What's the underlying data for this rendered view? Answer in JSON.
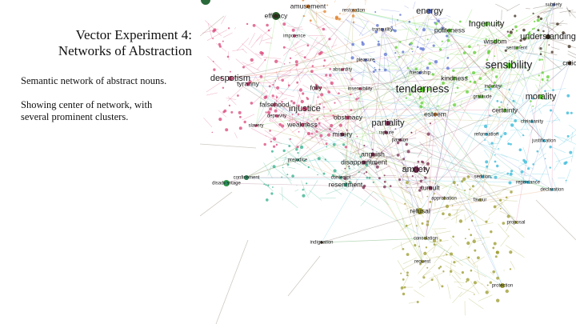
{
  "slide": {
    "title_line1": "Vector Experiment 4:",
    "title_line2": "Networks of Abstraction",
    "description": "Semantic network of abstract nouns.",
    "note": "Showing center of network, with several prominent clusters."
  },
  "network": {
    "cluster_colors": {
      "red": "#d9467a",
      "green": "#5ccf2e",
      "blue": "#5a6fd0",
      "teal": "#2fae8a",
      "maroon": "#7a2a4e",
      "olive": "#9a9a2a",
      "cyan": "#2fb7d8",
      "orange": "#e0832e",
      "dark": "#3a2a1a"
    },
    "nodes": [
      {
        "label": "amusement",
        "cluster": "orange",
        "weight": 2
      },
      {
        "label": "restoration",
        "cluster": "orange",
        "weight": 1
      },
      {
        "label": "energy",
        "cluster": "blue",
        "weight": 3
      },
      {
        "label": "subtlety",
        "cluster": "blue",
        "weight": 1
      },
      {
        "label": "efficacy",
        "cluster": "dark",
        "weight": 2
      },
      {
        "label": "Ingenuity",
        "cluster": "green",
        "weight": 3
      },
      {
        "label": "understanding",
        "cluster": "dark",
        "weight": 3
      },
      {
        "label": "politeness",
        "cluster": "green",
        "weight": 2
      },
      {
        "label": "tranquility",
        "cluster": "blue",
        "weight": 1
      },
      {
        "label": "impotence",
        "cluster": "red",
        "weight": 1
      },
      {
        "label": "wisdom",
        "cluster": "green",
        "weight": 2
      },
      {
        "label": "sentiment",
        "cluster": "green",
        "weight": 1
      },
      {
        "label": "pleasure",
        "cluster": "blue",
        "weight": 1
      },
      {
        "label": "sensibility",
        "cluster": "green",
        "weight": 4
      },
      {
        "label": "critic",
        "cluster": "dark",
        "weight": 2
      },
      {
        "label": "despotism",
        "cluster": "red",
        "weight": 3
      },
      {
        "label": "tyranny",
        "cluster": "red",
        "weight": 2
      },
      {
        "label": "absurdity",
        "cluster": "red",
        "weight": 1
      },
      {
        "label": "friendship",
        "cluster": "blue",
        "weight": 1
      },
      {
        "label": "kindness",
        "cluster": "green",
        "weight": 2
      },
      {
        "label": "tenderness",
        "cluster": "green",
        "weight": 4
      },
      {
        "label": "morality",
        "cluster": "green",
        "weight": 3
      },
      {
        "label": "industry",
        "cluster": "green",
        "weight": 1
      },
      {
        "label": "gratitude",
        "cluster": "green",
        "weight": 1
      },
      {
        "label": "folly",
        "cluster": "red",
        "weight": 2
      },
      {
        "label": "insensibility",
        "cluster": "red",
        "weight": 1
      },
      {
        "label": "falsehood",
        "cluster": "red",
        "weight": 2
      },
      {
        "label": "injustice",
        "cluster": "red",
        "weight": 3
      },
      {
        "label": "obstinacy",
        "cluster": "red",
        "weight": 2
      },
      {
        "label": "esteem",
        "cluster": "orange",
        "weight": 2
      },
      {
        "label": "certainty",
        "cluster": "green",
        "weight": 2
      },
      {
        "label": "christianity",
        "cluster": "cyan",
        "weight": 1
      },
      {
        "label": "partiality",
        "cluster": "maroon",
        "weight": 3
      },
      {
        "label": "depravity",
        "cluster": "red",
        "weight": 1
      },
      {
        "label": "slavery",
        "cluster": "red",
        "weight": 1
      },
      {
        "label": "weakness",
        "cluster": "red",
        "weight": 2
      },
      {
        "label": "misery",
        "cluster": "maroon",
        "weight": 2
      },
      {
        "label": "rapture",
        "cluster": "maroon",
        "weight": 1
      },
      {
        "label": "passion",
        "cluster": "maroon",
        "weight": 1
      },
      {
        "label": "reformation",
        "cluster": "cyan",
        "weight": 1
      },
      {
        "label": "justification",
        "cluster": "cyan",
        "weight": 1
      },
      {
        "label": "anguish",
        "cluster": "maroon",
        "weight": 2
      },
      {
        "label": "prejudice",
        "cluster": "teal",
        "weight": 1
      },
      {
        "label": "disappointment",
        "cluster": "maroon",
        "weight": 2
      },
      {
        "label": "anxiety",
        "cluster": "maroon",
        "weight": 3
      },
      {
        "label": "sedition",
        "cluster": "cyan",
        "weight": 1
      },
      {
        "label": "confinement",
        "cluster": "teal",
        "weight": 1
      },
      {
        "label": "disadvantage",
        "cluster": "teal",
        "weight": 1
      },
      {
        "label": "contempt",
        "cluster": "teal",
        "weight": 1
      },
      {
        "label": "resentment",
        "cluster": "teal",
        "weight": 2
      },
      {
        "label": "tumult",
        "cluster": "maroon",
        "weight": 2
      },
      {
        "label": "repentance",
        "cluster": "cyan",
        "weight": 1
      },
      {
        "label": "favour",
        "cluster": "olive",
        "weight": 1
      },
      {
        "label": "approbation",
        "cluster": "olive",
        "weight": 1
      },
      {
        "label": "declaration",
        "cluster": "cyan",
        "weight": 1
      },
      {
        "label": "refusal",
        "cluster": "olive",
        "weight": 2
      },
      {
        "label": "proposal",
        "cluster": "olive",
        "weight": 1
      },
      {
        "label": "indignation",
        "cluster": "dark",
        "weight": 1
      },
      {
        "label": "consolation",
        "cluster": "olive",
        "weight": 1
      },
      {
        "label": "request",
        "cluster": "olive",
        "weight": 1
      },
      {
        "label": "protection",
        "cluster": "olive",
        "weight": 1
      }
    ]
  }
}
